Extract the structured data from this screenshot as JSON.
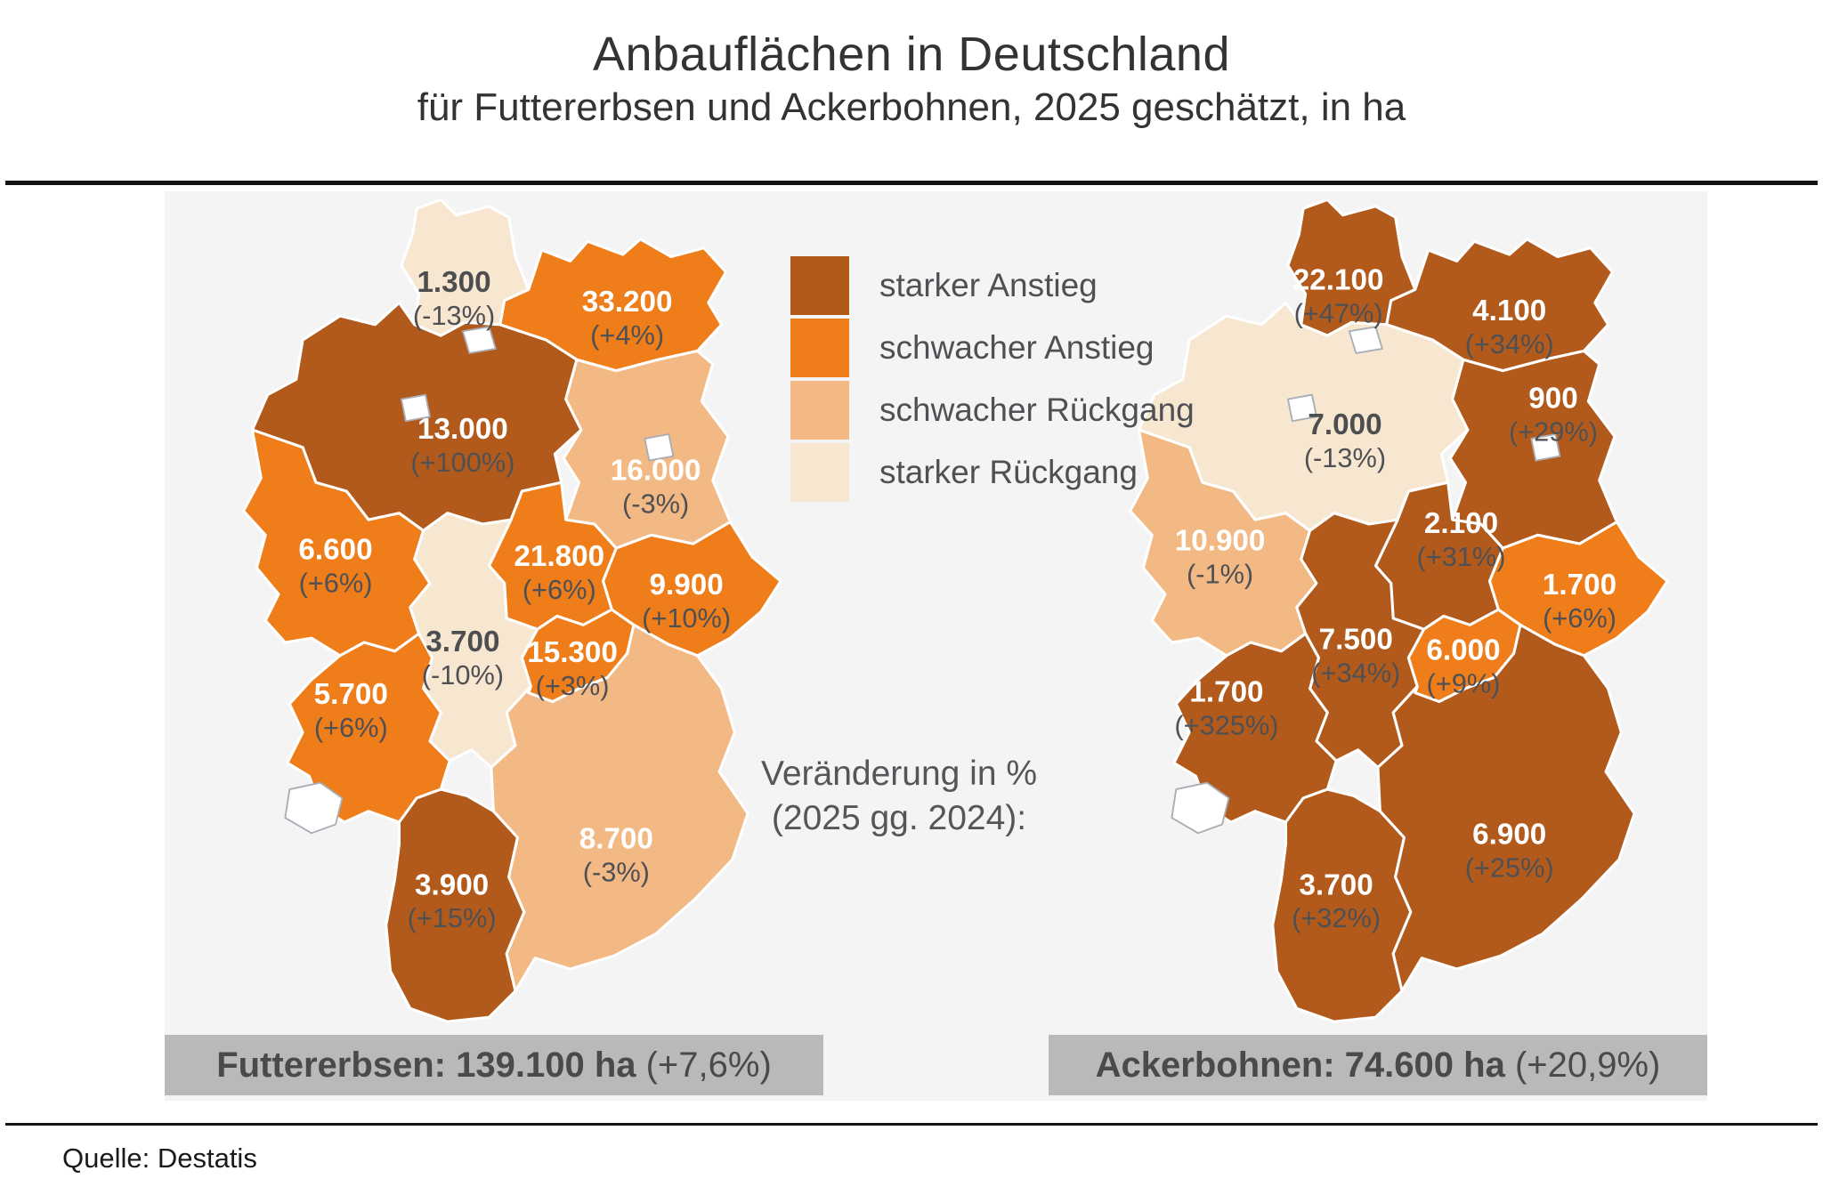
{
  "title": "Anbauflächen in Deutschland",
  "subtitle": "für Futtererbsen und Ackerbohnen, 2025 geschätzt, in ha",
  "source": "Quelle: Destatis",
  "annotation": {
    "line1": "Veränderung in %",
    "line2": "(2025 gg. 2024):"
  },
  "colors": {
    "panel_background": "#f4f4f4",
    "caption_bar": "#b9b9b9",
    "no_data_fill": "#ffffff",
    "no_data_stroke": "#a9adb5",
    "state_border": "#ffffff",
    "value_text_light": "#ffffff",
    "value_text_dark": "#4d4e50",
    "change_text": "#4f5054",
    "categories": {
      "starker Anstieg": "#b25a1b",
      "schwacher Anstieg": "#ee7d1a",
      "schwacher Rückgang": "#f3b984",
      "starker Rückgang": "#f8e7d0"
    }
  },
  "legend": {
    "items": [
      {
        "label": "starker Anstieg",
        "category": "starker Anstieg"
      },
      {
        "label": "schwacher Anstieg",
        "category": "schwacher Anstieg"
      },
      {
        "label": "schwacher Rückgang",
        "category": "schwacher Rückgang"
      },
      {
        "label": "starker Rückgang",
        "category": "starker Rückgang"
      }
    ]
  },
  "chart_data": {
    "type": "choropleth-map-pair",
    "unit": "ha",
    "region": "Deutschland (Bundesländer)",
    "year": "2025 geschätzt",
    "comparison": "2025 gg. 2024",
    "maps": [
      {
        "id": "futtererbsen",
        "caption_bold": "Futtererbsen: 139.100 ha",
        "caption_change": " (+7,6%)",
        "total_ha": 139100,
        "total_change_pct": 7.6,
        "states": [
          {
            "id": "SH",
            "state": "Schleswig-Holstein",
            "value": "1.300",
            "value_ha": 1300,
            "change": "(-13%)",
            "change_pct": -13,
            "category": "starker Rückgang"
          },
          {
            "id": "MV",
            "state": "Mecklenburg-Vorpommern",
            "value": "33.200",
            "value_ha": 33200,
            "change": "(+4%)",
            "change_pct": 4,
            "category": "schwacher Anstieg"
          },
          {
            "id": "NI",
            "state": "Niedersachsen",
            "value": "13.000",
            "value_ha": 13000,
            "change": "(+100%)",
            "change_pct": 100,
            "category": "starker Anstieg"
          },
          {
            "id": "BB",
            "state": "Brandenburg",
            "value": "16.000",
            "value_ha": 16000,
            "change": "(-3%)",
            "change_pct": -3,
            "category": "schwacher Rückgang"
          },
          {
            "id": "ST",
            "state": "Sachsen-Anhalt",
            "value": "21.800",
            "value_ha": 21800,
            "change": "(+6%)",
            "change_pct": 6,
            "category": "schwacher Anstieg"
          },
          {
            "id": "NW",
            "state": "Nordrhein-Westfalen",
            "value": "6.600",
            "value_ha": 6600,
            "change": "(+6%)",
            "change_pct": 6,
            "category": "schwacher Anstieg"
          },
          {
            "id": "HE",
            "state": "Hessen",
            "value": "3.700",
            "value_ha": 3700,
            "change": "(-10%)",
            "change_pct": -10,
            "category": "starker Rückgang"
          },
          {
            "id": "TH",
            "state": "Thüringen",
            "value": "15.300",
            "value_ha": 15300,
            "change": "(+3%)",
            "change_pct": 3,
            "category": "schwacher Anstieg"
          },
          {
            "id": "SN",
            "state": "Sachsen",
            "value": "9.900",
            "value_ha": 9900,
            "change": "(+10%)",
            "change_pct": 10,
            "category": "schwacher Anstieg"
          },
          {
            "id": "RP",
            "state": "Rheinland-Pfalz",
            "value": "5.700",
            "value_ha": 5700,
            "change": "(+6%)",
            "change_pct": 6,
            "category": "schwacher Anstieg"
          },
          {
            "id": "BW",
            "state": "Baden-Württemberg",
            "value": "3.900",
            "value_ha": 3900,
            "change": "(+15%)",
            "change_pct": 15,
            "category": "starker Anstieg"
          },
          {
            "id": "BY",
            "state": "Bayern",
            "value": "8.700",
            "value_ha": 8700,
            "change": "(-3%)",
            "change_pct": -3,
            "category": "schwacher Rückgang"
          }
        ]
      },
      {
        "id": "ackerbohnen",
        "caption_bold": "Ackerbohnen: 74.600 ha",
        "caption_change": " (+20,9%)",
        "total_ha": 74600,
        "total_change_pct": 20.9,
        "states": [
          {
            "id": "SH",
            "state": "Schleswig-Holstein",
            "value": "22.100",
            "value_ha": 22100,
            "change": "(+47%)",
            "change_pct": 47,
            "category": "starker Anstieg"
          },
          {
            "id": "MV",
            "state": "Mecklenburg-Vorpommern",
            "value": "4.100",
            "value_ha": 4100,
            "change": "(+34%)",
            "change_pct": 34,
            "category": "starker Anstieg"
          },
          {
            "id": "NI",
            "state": "Niedersachsen",
            "value": "7.000",
            "value_ha": 7000,
            "change": "(-13%)",
            "change_pct": -13,
            "category": "starker Rückgang"
          },
          {
            "id": "BB",
            "state": "Brandenburg",
            "value": "900",
            "value_ha": 900,
            "change": "(+29%)",
            "change_pct": 29,
            "category": "starker Anstieg"
          },
          {
            "id": "ST",
            "state": "Sachsen-Anhalt",
            "value": "2.100",
            "value_ha": 2100,
            "change": "(+31%)",
            "change_pct": 31,
            "category": "starker Anstieg"
          },
          {
            "id": "NW",
            "state": "Nordrhein-Westfalen",
            "value": "10.900",
            "value_ha": 10900,
            "change": "(-1%)",
            "change_pct": -1,
            "category": "schwacher Rückgang"
          },
          {
            "id": "HE",
            "state": "Hessen",
            "value": "7.500",
            "value_ha": 7500,
            "change": "(+34%)",
            "change_pct": 34,
            "category": "starker Anstieg"
          },
          {
            "id": "TH",
            "state": "Thüringen",
            "value": "6.000",
            "value_ha": 6000,
            "change": "(+9%)",
            "change_pct": 9,
            "category": "schwacher Anstieg"
          },
          {
            "id": "SN",
            "state": "Sachsen",
            "value": "1.700",
            "value_ha": 1700,
            "change": "(+6%)",
            "change_pct": 6,
            "category": "schwacher Anstieg"
          },
          {
            "id": "RP",
            "state": "Rheinland-Pfalz",
            "value": "1.700",
            "value_ha": 1700,
            "change": "(+325%)",
            "change_pct": 325,
            "category": "starker Anstieg"
          },
          {
            "id": "BW",
            "state": "Baden-Württemberg",
            "value": "3.700",
            "value_ha": 3700,
            "change": "(+32%)",
            "change_pct": 32,
            "category": "starker Anstieg"
          },
          {
            "id": "BY",
            "state": "Bayern",
            "value": "6.900",
            "value_ha": 6900,
            "change": "(+25%)",
            "change_pct": 25,
            "category": "starker Anstieg"
          }
        ]
      }
    ]
  }
}
